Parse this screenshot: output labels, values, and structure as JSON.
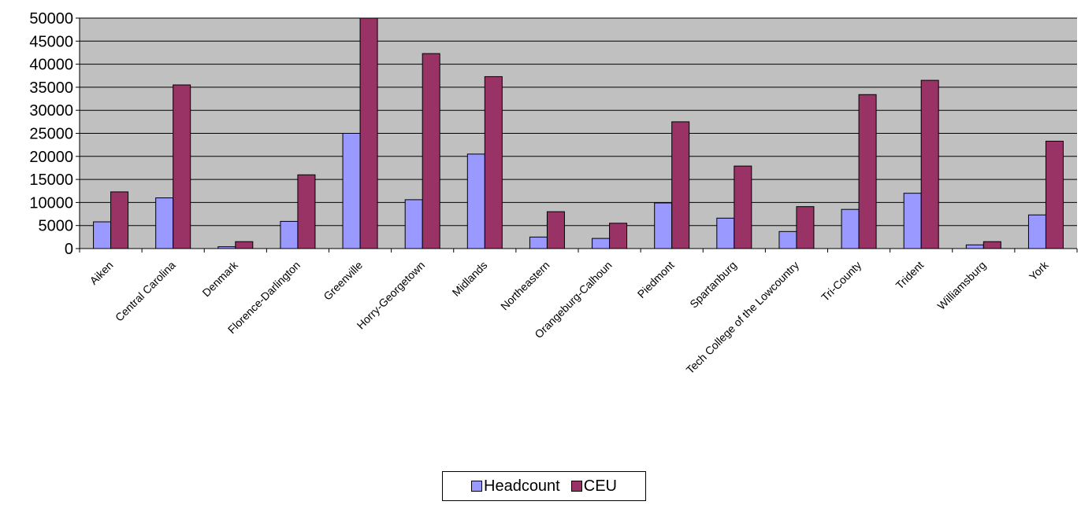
{
  "chart_data": {
    "type": "bar",
    "categories": [
      "Aiken",
      "Central Carolina",
      "Denmark",
      "Florence-Darlington",
      "Greenville",
      "Horry-Georgetown",
      "Midlands",
      "Northeastern",
      "Orangeburg-Calhoun",
      "Piedmont",
      "Spartanburg",
      "Tech College of the Lowcountry",
      "Tri-County",
      "Trident",
      "Williamsburg",
      "York"
    ],
    "series": [
      {
        "name": "Headcount",
        "color": "#9999ff",
        "values": [
          5800,
          11000,
          400,
          5900,
          25000,
          10600,
          20500,
          2500,
          2200,
          9900,
          6600,
          3700,
          8500,
          12000,
          800,
          7300
        ]
      },
      {
        "name": "CEU",
        "color": "#993366",
        "values": [
          12300,
          35500,
          1500,
          16000,
          51000,
          42300,
          37300,
          8000,
          5500,
          27500,
          17900,
          9100,
          33400,
          36500,
          1500,
          23300
        ]
      }
    ],
    "y_ticks": [
      "0",
      "5000",
      "10000",
      "15000",
      "20000",
      "25000",
      "30000",
      "35000",
      "40000",
      "45000",
      "50000"
    ],
    "ylim": [
      0,
      50000
    ],
    "grid": true,
    "plot_background": "#c0c0c0",
    "legend_position": "bottom"
  }
}
